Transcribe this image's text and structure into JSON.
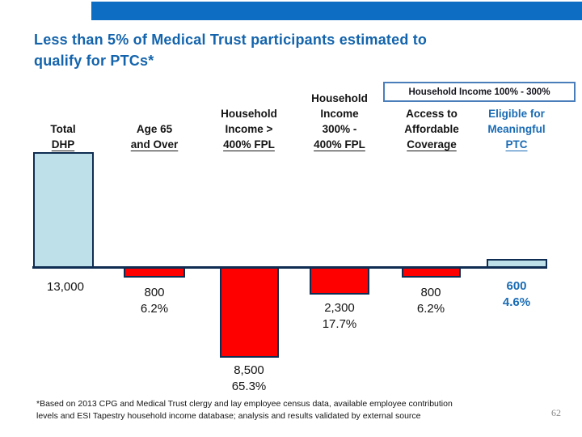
{
  "slide": {
    "title_lines": [
      "Less than 5% of Medical Trust participants estimated to",
      "qualify for PTCs*"
    ],
    "footnote_lines": [
      "*Based on 2013 CPG and Medical Trust clergy and lay employee census data, available employee contribution",
      "levels and ESI Tapestry household income database; analysis and results validated by external source"
    ],
    "page_number": "62"
  },
  "chart": {
    "group_label": "Household Income 100% - 300%",
    "columns": [
      {
        "lines": [
          "Total",
          "DHP"
        ]
      },
      {
        "lines": [
          "Age 65",
          "and Over"
        ]
      },
      {
        "lines": [
          "Household",
          "Income >",
          "400% FPL"
        ]
      },
      {
        "lines": [
          "Household",
          "Income",
          "300% -",
          "400% FPL"
        ]
      },
      {
        "lines": [
          "Access to",
          "Affordable",
          "Coverage"
        ]
      },
      {
        "lines": [
          "Eligible for",
          "Meaningful",
          "PTC"
        ]
      }
    ],
    "labels": [
      {
        "value": "13,000",
        "pct": ""
      },
      {
        "value": "800",
        "pct": "6.2%"
      },
      {
        "value": "8,500",
        "pct": "65.3%"
      },
      {
        "value": "2,300",
        "pct": "17.7%"
      },
      {
        "value": "800",
        "pct": "6.2%"
      },
      {
        "value": "600",
        "pct": "4.6%"
      }
    ]
  },
  "chart_data": {
    "type": "bar",
    "subtype": "waterfall",
    "title": "Less than 5% of Medical Trust participants estimated to qualify for PTCs*",
    "categories": [
      "Total DHP",
      "Age 65 and Over",
      "Household Income > 400% FPL",
      "Household Income 300% - 400% FPL",
      "Access to Affordable Coverage",
      "Eligible for Meaningful PTC"
    ],
    "values": [
      13000,
      -800,
      -8500,
      -2300,
      -800,
      600
    ],
    "value_labels": [
      "13,000",
      "800",
      "8,500",
      "2,300",
      "800",
      "600"
    ],
    "percent_labels": [
      null,
      "6.2%",
      "65.3%",
      "17.7%",
      "6.2%",
      "4.6%"
    ],
    "bar_direction": [
      "above-axis",
      "below-axis",
      "below-axis",
      "below-axis",
      "below-axis",
      "above-axis"
    ],
    "bar_colors": [
      "#BEE0E9",
      "#FE0000",
      "#FE0000",
      "#FE0000",
      "#FE0000",
      "#BEE0E9"
    ],
    "group_annotation": {
      "label": "Household Income 100% - 300%",
      "categories": [
        "Access to Affordable Coverage",
        "Eligible for Meaningful PTC"
      ]
    },
    "baseline": 0,
    "grid": false,
    "legend": false,
    "xlabel": "",
    "ylabel": ""
  },
  "colors": {
    "banner_blue": "#0C6DC2",
    "title_blue": "#1464AD",
    "bar_red": "#FE0000",
    "bar_light_blue": "#BEE0E9",
    "bar_border_navy": "#0F2D52",
    "accent_label_blue": "#1B6CB4",
    "group_box_border_blue": "#4A7EBB"
  }
}
